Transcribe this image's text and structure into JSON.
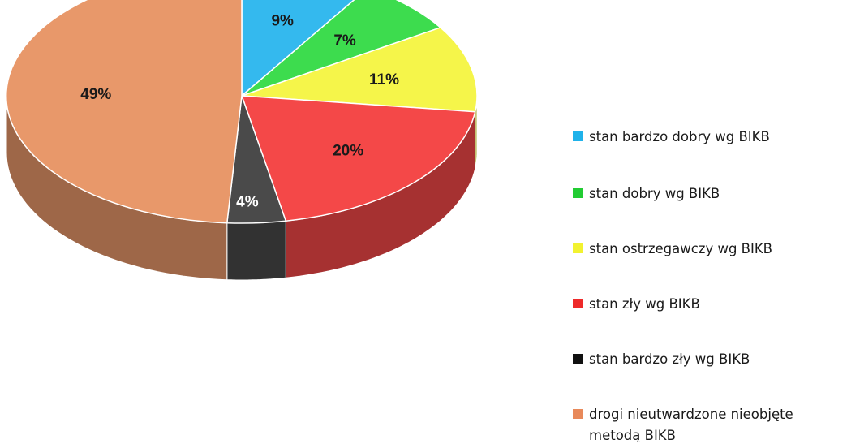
{
  "chart_data": {
    "type": "pie",
    "title": "",
    "slices": [
      {
        "label": "stan bardzo dobry wg BIKB",
        "value": 9,
        "display": "9%",
        "color": "#34b9ee",
        "text_color": "#1a1a1a"
      },
      {
        "label": "stan dobry wg BIKB",
        "value": 7,
        "display": "7%",
        "color": "#3ddc4e",
        "text_color": "#1a1a1a"
      },
      {
        "label": "stan ostrzegawczy wg BIKB",
        "value": 11,
        "display": "11%",
        "color": "#f5f54a",
        "text_color": "#1a1a1a"
      },
      {
        "label": "stan zły wg BIKB",
        "value": 20,
        "display": "20%",
        "color": "#f44848",
        "text_color": "#1a1a1a"
      },
      {
        "label": "stan bardzo zły wg BIKB",
        "value": 4,
        "display": "4%",
        "color": "#4a4a4a",
        "text_color": "#ffffff"
      },
      {
        "label": "drogi nieutwardzone nieobjęte metodą BIKB",
        "value": 49,
        "display": "49%",
        "color": "#e8986a",
        "text_color": "#1a1a1a"
      }
    ],
    "legend_position": "right",
    "style": "3d-tilted"
  },
  "legend": {
    "items": [
      {
        "label": "stan bardzo dobry wg BIKB",
        "color": "#1fb2ea"
      },
      {
        "label": "stan dobry wg BIKB",
        "color": "#22cc33"
      },
      {
        "label": "stan ostrzegawczy wg BIKB",
        "color": "#f2f230"
      },
      {
        "label": "stan zły wg BIKB",
        "color": "#ee2a2a"
      },
      {
        "label": "stan bardzo zły wg BIKB",
        "color": "#111111"
      },
      {
        "label": "drogi nieutwardzone nieobjęte metodą BIKB",
        "color": "#e8895a"
      }
    ]
  }
}
